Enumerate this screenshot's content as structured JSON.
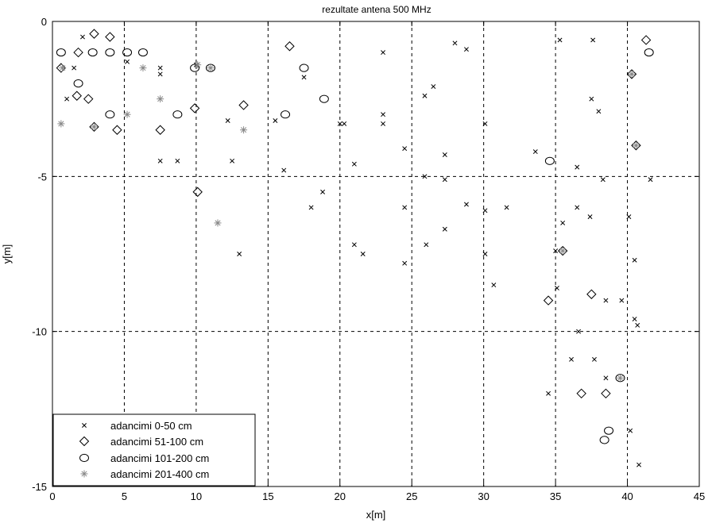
{
  "chart_data": {
    "type": "scatter",
    "title": "rezultate antena 500 MHz",
    "xlabel": "x[m]",
    "ylabel": "y[m]",
    "xlim": [
      0,
      45
    ],
    "ylim": [
      -15,
      0
    ],
    "xticks": [
      0,
      5,
      10,
      15,
      20,
      25,
      30,
      35,
      40,
      45
    ],
    "yticks": [
      0,
      -5,
      -10,
      -15
    ],
    "xtick_labels": [
      "0",
      "5",
      "10",
      "15",
      "20",
      "25",
      "30",
      "35",
      "40",
      "45"
    ],
    "ytick_labels": [
      "0",
      "-5",
      "-10",
      "-15"
    ],
    "grid": true,
    "legend_position": "bottom-left",
    "series": [
      {
        "name": "adancimi 0-50 cm",
        "marker": "x",
        "color": "#000000",
        "points": [
          [
            2.1,
            -0.5
          ],
          [
            1.5,
            -1.5
          ],
          [
            1.0,
            -2.5
          ],
          [
            5.2,
            -1.3
          ],
          [
            7.5,
            -1.5
          ],
          [
            7.5,
            -1.7
          ],
          [
            10.0,
            -1.4
          ],
          [
            7.5,
            -4.5
          ],
          [
            8.7,
            -4.5
          ],
          [
            12.5,
            -4.5
          ],
          [
            12.2,
            -3.2
          ],
          [
            13.0,
            -7.5
          ],
          [
            15.5,
            -3.2
          ],
          [
            16.1,
            -4.8
          ],
          [
            17.5,
            -1.8
          ],
          [
            18.0,
            -6.0
          ],
          [
            18.8,
            -5.5
          ],
          [
            20.0,
            -3.3
          ],
          [
            20.3,
            -3.3
          ],
          [
            21.0,
            -4.6
          ],
          [
            21.0,
            -7.2
          ],
          [
            21.6,
            -7.5
          ],
          [
            23.0,
            -1.0
          ],
          [
            23.0,
            -3.0
          ],
          [
            23.0,
            -3.3
          ],
          [
            24.5,
            -4.1
          ],
          [
            24.5,
            -6.0
          ],
          [
            24.5,
            -7.8
          ],
          [
            25.9,
            -2.4
          ],
          [
            25.9,
            -5.0
          ],
          [
            26.0,
            -7.2
          ],
          [
            26.5,
            -2.1
          ],
          [
            27.3,
            -4.3
          ],
          [
            27.3,
            -5.1
          ],
          [
            27.3,
            -6.7
          ],
          [
            28.0,
            -0.7
          ],
          [
            28.8,
            -0.9
          ],
          [
            28.8,
            -5.9
          ],
          [
            30.1,
            -3.3
          ],
          [
            30.1,
            -6.1
          ],
          [
            30.1,
            -7.5
          ],
          [
            30.7,
            -8.5
          ],
          [
            31.6,
            -6.0
          ],
          [
            33.6,
            -4.2
          ],
          [
            34.5,
            -12.0
          ],
          [
            35.1,
            -8.6
          ],
          [
            35.3,
            -0.6
          ],
          [
            35.5,
            -6.5
          ],
          [
            35.0,
            -7.4
          ],
          [
            36.1,
            -10.9
          ],
          [
            36.5,
            -4.7
          ],
          [
            36.5,
            -6.0
          ],
          [
            36.6,
            -10.0
          ],
          [
            37.4,
            -6.3
          ],
          [
            37.6,
            -0.6
          ],
          [
            37.5,
            -2.5
          ],
          [
            38.0,
            -2.9
          ],
          [
            37.7,
            -10.9
          ],
          [
            38.3,
            -5.1
          ],
          [
            38.5,
            -9.0
          ],
          [
            38.5,
            -11.5
          ],
          [
            39.6,
            -9.0
          ],
          [
            40.1,
            -6.3
          ],
          [
            40.2,
            -13.2
          ],
          [
            40.5,
            -7.7
          ],
          [
            40.5,
            -9.6
          ],
          [
            40.7,
            -9.8
          ],
          [
            40.8,
            -14.3
          ],
          [
            41.6,
            -5.1
          ]
        ]
      },
      {
        "name": "adancimi 51-100 cm",
        "marker": "diamond",
        "color": "#000000",
        "points": [
          [
            0.6,
            -1.5
          ],
          [
            1.8,
            -1.0
          ],
          [
            1.7,
            -2.4
          ],
          [
            2.5,
            -2.5
          ],
          [
            2.9,
            -0.4
          ],
          [
            2.9,
            -3.4
          ],
          [
            4.0,
            -0.5
          ],
          [
            4.5,
            -3.5
          ],
          [
            7.5,
            -3.5
          ],
          [
            9.9,
            -2.8
          ],
          [
            10.1,
            -5.5
          ],
          [
            13.3,
            -2.7
          ],
          [
            16.5,
            -0.8
          ],
          [
            34.5,
            -9.0
          ],
          [
            35.5,
            -7.4
          ],
          [
            36.8,
            -12.0
          ],
          [
            37.5,
            -8.8
          ],
          [
            38.5,
            -12.0
          ],
          [
            40.3,
            -1.7
          ],
          [
            40.6,
            -4.0
          ],
          [
            41.3,
            -0.6
          ]
        ]
      },
      {
        "name": "adancimi 101-200 cm",
        "marker": "circle",
        "color": "#000000",
        "points": [
          [
            0.6,
            -1.0
          ],
          [
            1.8,
            -2.0
          ],
          [
            2.8,
            -1.0
          ],
          [
            4.0,
            -1.0
          ],
          [
            5.2,
            -1.0
          ],
          [
            6.3,
            -1.0
          ],
          [
            4.0,
            -3.0
          ],
          [
            8.7,
            -3.0
          ],
          [
            9.9,
            -1.5
          ],
          [
            11.0,
            -1.5
          ],
          [
            16.2,
            -3.0
          ],
          [
            17.5,
            -1.5
          ],
          [
            18.9,
            -2.5
          ],
          [
            34.6,
            -4.5
          ],
          [
            38.4,
            -13.5
          ],
          [
            38.7,
            -13.2
          ],
          [
            39.5,
            -11.5
          ],
          [
            41.5,
            -1.0
          ]
        ]
      },
      {
        "name": "adancimi 201-400 cm",
        "marker": "star",
        "color": "#888888",
        "points": [
          [
            0.6,
            -3.3
          ],
          [
            0.7,
            -1.5
          ],
          [
            2.9,
            -3.4
          ],
          [
            5.2,
            -3.0
          ],
          [
            6.3,
            -1.5
          ],
          [
            7.5,
            -2.5
          ],
          [
            10.1,
            -1.4
          ],
          [
            11.0,
            -1.5
          ],
          [
            11.5,
            -6.5
          ],
          [
            13.3,
            -3.5
          ],
          [
            35.5,
            -7.4
          ],
          [
            39.5,
            -11.5
          ],
          [
            40.3,
            -1.7
          ],
          [
            40.6,
            -4.0
          ]
        ]
      }
    ]
  }
}
